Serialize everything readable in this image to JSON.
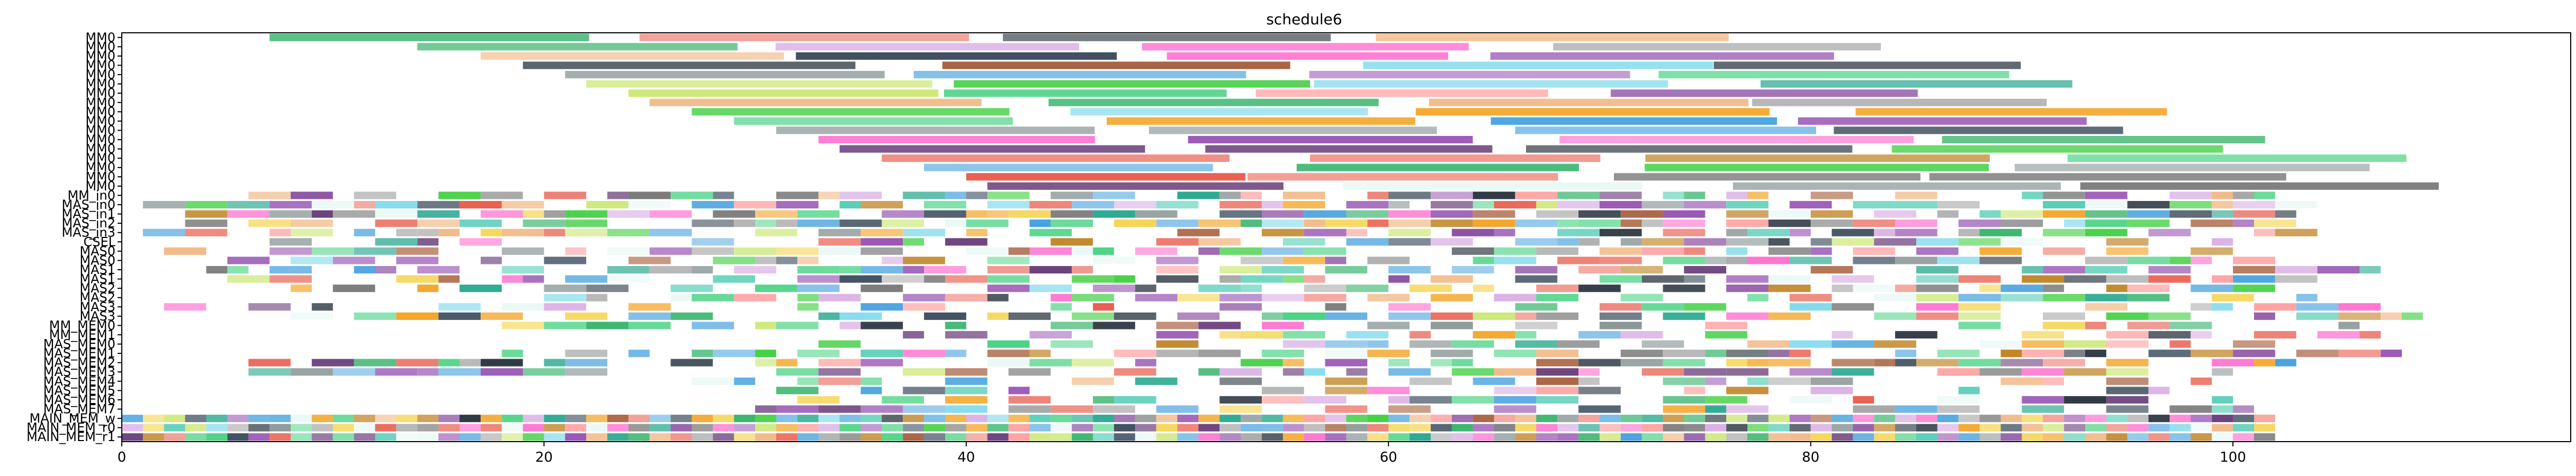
{
  "chart_data": {
    "type": "gantt",
    "title": "schedule6",
    "xlim": [
      0,
      116
    ],
    "xticks": [
      0,
      20,
      40,
      60,
      80,
      100
    ],
    "grid": false,
    "rows": [
      "MM0",
      "MM0",
      "MM0",
      "MM0",
      "MM0",
      "MM0",
      "MM0",
      "MM0",
      "MM0",
      "MM0",
      "MM0",
      "MM0",
      "MM0",
      "MM0",
      "MM0",
      "MM0",
      "MM0",
      "MM_in0",
      "MAS_in0",
      "MAS_in1",
      "MAS_in2",
      "MAS_in3",
      "CSEL",
      "MAS0",
      "MAS0",
      "MAS1",
      "MAS1",
      "MAS2",
      "MAS2",
      "MAS3",
      "MAS3",
      "MM_MEM0",
      "MM_MEM1",
      "MAS_MEM0",
      "MAS_MEM1",
      "MAS_MEM2",
      "MAS_MEM3",
      "MAS_MEM4",
      "MAS_MEM5",
      "MAS_MEM6",
      "MAS_MEM7",
      "MAIN_MEM_w",
      "MAIN_MEM_r0",
      "MAIN_MEM_r1"
    ],
    "palette": [
      "#5dade2",
      "#7d3c98",
      "#d7a9e3",
      "#f0b27a",
      "#76d7ea",
      "#1b2631",
      "#a9a9a9",
      "#c8e66b",
      "#58d68d",
      "#e8f8f5",
      "#6e6e6e",
      "#48c9b0",
      "#ec7063",
      "#f4d03f",
      "#2ecc71",
      "#e74c3c",
      "#9b59b6",
      "#a0522d",
      "#ff66cc",
      "#33cc33",
      "#3498db",
      "#ff9999",
      "#7f8c8d",
      "#16a085",
      "#b9770e",
      "#5b2c6f",
      "#f39c12",
      "#27ae60",
      "#8e44ad",
      "#2c3e50"
    ]
  }
}
